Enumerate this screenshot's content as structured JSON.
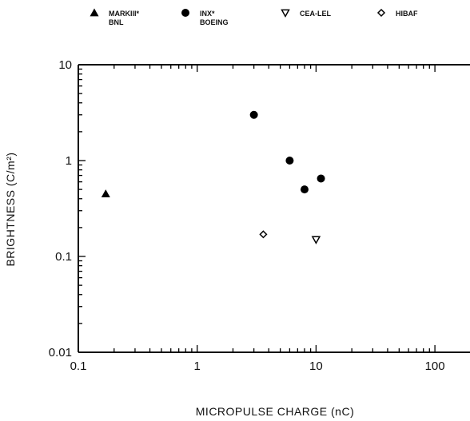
{
  "chart_data": {
    "type": "scatter",
    "title": "",
    "xlabel": "MICROPULSE CHARGE (nC)",
    "ylabel": "BRIGHTNESS (C/m²)",
    "xscale": "log",
    "yscale": "log",
    "xlim": [
      0.1,
      200
    ],
    "ylim": [
      0.01,
      10
    ],
    "x_tick_labels": [
      "0.1",
      "1",
      "10",
      "100"
    ],
    "y_tick_labels": [
      "0.01",
      "0.1",
      "1",
      "10"
    ],
    "grid": false,
    "legend_placement": "top",
    "series": [
      {
        "name": "MARKIII BNL",
        "legend_lines": [
          "MARKIII*",
          "BNL"
        ],
        "marker": "triangle-filled",
        "points": [
          {
            "x": 0.17,
            "y": 0.45
          }
        ]
      },
      {
        "name": "INX BOEING",
        "legend_lines": [
          "INX*",
          "BOEING"
        ],
        "marker": "circle-filled",
        "points": [
          {
            "x": 3.0,
            "y": 3.0
          },
          {
            "x": 6.0,
            "y": 1.0
          },
          {
            "x": 8.0,
            "y": 0.5
          },
          {
            "x": 11.0,
            "y": 0.65
          }
        ]
      },
      {
        "name": "CEA-LEL",
        "legend_lines": [
          "CEA-LEL"
        ],
        "marker": "triangle-down-open",
        "points": [
          {
            "x": 10.0,
            "y": 0.15
          }
        ]
      },
      {
        "name": "HIBAF",
        "legend_lines": [
          "HIBAF"
        ],
        "marker": "diamond-open",
        "points": [
          {
            "x": 3.6,
            "y": 0.17
          }
        ]
      }
    ]
  }
}
